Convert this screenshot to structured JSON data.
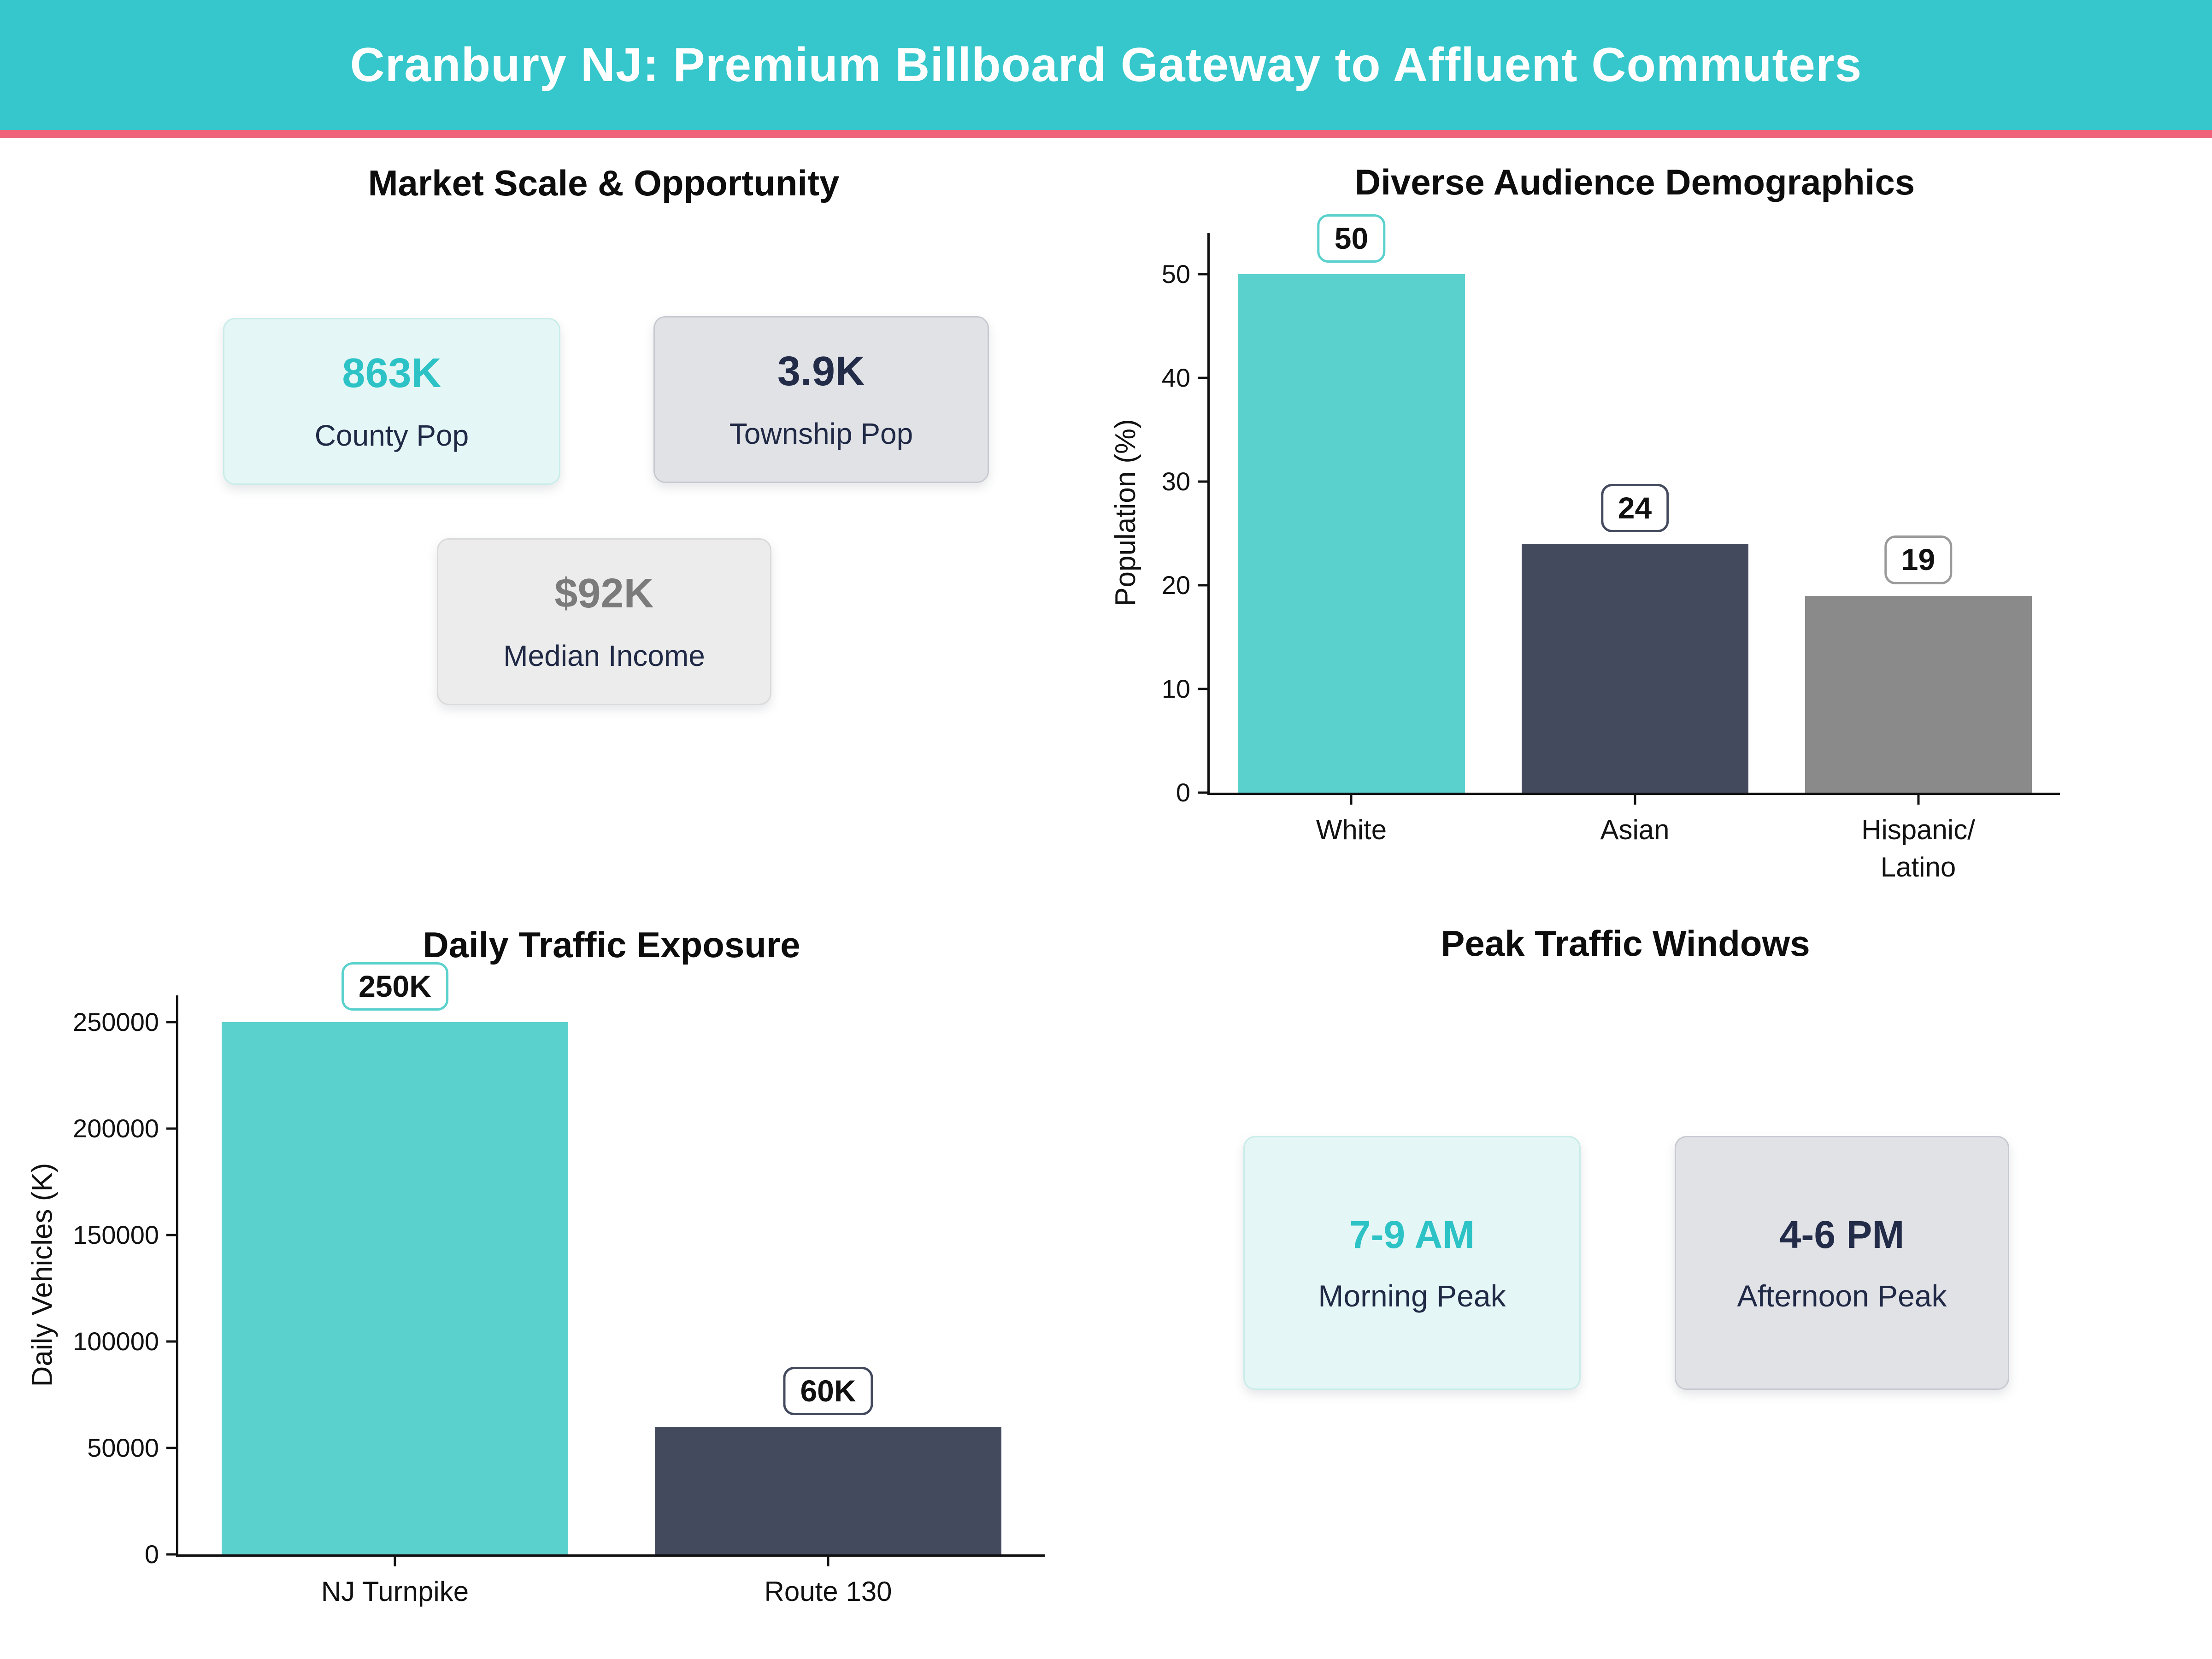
{
  "page": {
    "background": "#ffffff"
  },
  "header": {
    "title": "Cranbury NJ: Premium Billboard Gateway to Affluent Commuters",
    "background_color": "#35C7CB",
    "divider_color": "#F0617A",
    "text_color": "#ffffff"
  },
  "sections": {
    "market": {
      "title": "Market Scale & Opportunity",
      "cards": [
        {
          "value": "863K",
          "label": "County Pop"
        },
        {
          "value": "3.9K",
          "label": "Township Pop"
        },
        {
          "value": "$92K",
          "label": "Median Income"
        }
      ]
    },
    "peak": {
      "title": "Peak Traffic Windows",
      "cards": [
        {
          "value": "7-9 AM",
          "label": "Morning Peak"
        },
        {
          "value": "4-6 PM",
          "label": "Afternoon Peak"
        }
      ]
    }
  },
  "chart_data": [
    {
      "id": "demographics",
      "type": "bar",
      "title": "Diverse Audience Demographics",
      "xlabel": "",
      "ylabel": "Population (%)",
      "categories": [
        "White",
        "Asian",
        "Hispanic/\nLatino"
      ],
      "values": [
        50,
        24,
        19
      ],
      "bar_labels": [
        "50",
        "24",
        "19"
      ],
      "bar_colors": [
        "#5BD1CE",
        "#444A5E",
        "#8A8A8A"
      ],
      "label_box_border_colors": [
        "#5BD1CE",
        "#444A5E",
        "#9A9A9A"
      ],
      "yticks": [
        0,
        10,
        20,
        30,
        40,
        50
      ],
      "ytick_labels": [
        "0",
        "10",
        "20",
        "30",
        "40",
        "50"
      ],
      "ylim": [
        0,
        54
      ],
      "grid": false,
      "legend": false
    },
    {
      "id": "traffic",
      "type": "bar",
      "title": "Daily Traffic Exposure",
      "xlabel": "",
      "ylabel": "Daily Vehicles (K)",
      "categories": [
        "NJ Turnpike",
        "Route 130"
      ],
      "values": [
        250000,
        60000
      ],
      "bar_labels": [
        "250K",
        "60K"
      ],
      "bar_colors": [
        "#5BD1CE",
        "#444A5E"
      ],
      "label_box_border_colors": [
        "#5BD1CE",
        "#444A5E"
      ],
      "yticks": [
        0,
        50000,
        100000,
        150000,
        200000,
        250000
      ],
      "ytick_labels": [
        "0",
        "50000",
        "100000",
        "150000",
        "200000",
        "250000"
      ],
      "ylim": [
        0,
        262500
      ],
      "grid": false,
      "legend": false
    }
  ],
  "colors": {
    "accent_teal": "#2DC3C6",
    "navy": "#222B47",
    "gray_text": "#7B7B7B",
    "bar_teal": "#5BD1CE",
    "bar_navy": "#444A5E",
    "bar_gray": "#8A8A8A"
  }
}
